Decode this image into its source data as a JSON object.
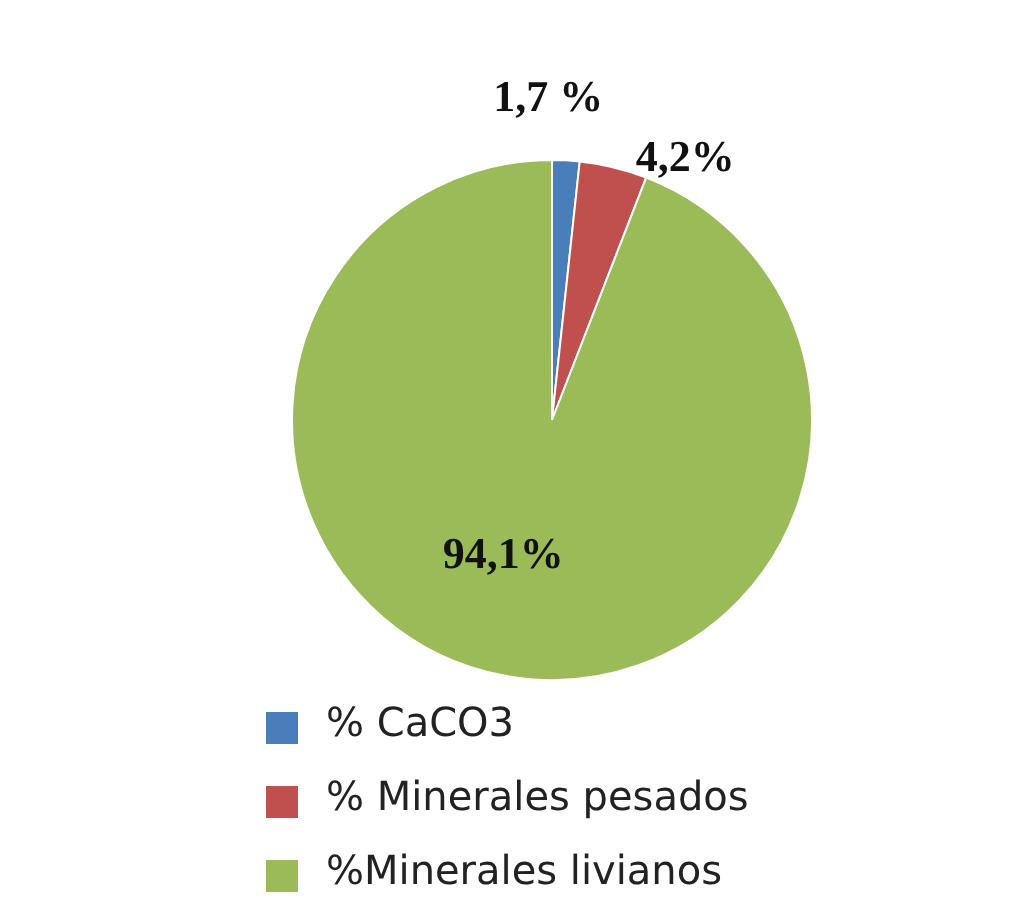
{
  "chart_data": {
    "type": "pie",
    "categories": [
      "% CaCO3",
      "% Minerales pesados",
      "%Minerales livianos"
    ],
    "values": [
      1.7,
      4.2,
      94.1
    ],
    "colors": [
      "#4a7ebb",
      "#c0504d",
      "#9bbb59"
    ],
    "value_labels": [
      "1,7 %",
      "4,2%",
      "94,1%"
    ],
    "legend": "bottom"
  }
}
